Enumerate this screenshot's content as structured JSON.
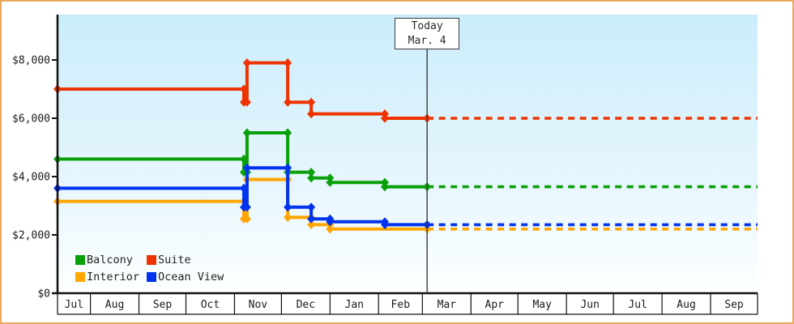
{
  "page": {
    "border_color": "#e9a85c",
    "plot_bg_top": "#cbedfb",
    "plot_bg_bottom": "#fdffff",
    "axis_color": "#111111",
    "today_line_color": "#3a3a3a"
  },
  "legend": [
    {
      "label": "Balcony",
      "color": "#0aa00a"
    },
    {
      "label": "Suite",
      "color": "#ee3300"
    },
    {
      "label": "Interior",
      "color": "#ffa500"
    },
    {
      "label": "Ocean View",
      "color": "#0033ee"
    }
  ],
  "chart_data": {
    "type": "line",
    "subtype": "step",
    "title": "",
    "x_axis": {
      "unit": "days",
      "total_days": 447,
      "month_labels": [
        "Jul",
        "Aug",
        "Sep",
        "Oct",
        "Nov",
        "Dec",
        "Jan",
        "Feb",
        "Mar",
        "Apr",
        "May",
        "Jun",
        "Jul",
        "Aug",
        "Sep"
      ],
      "month_boundaries_days": [
        0,
        21,
        52,
        82,
        113,
        143,
        174,
        205,
        233,
        264,
        294,
        325,
        355,
        386,
        417,
        447
      ]
    },
    "y_axis": {
      "min": 0,
      "max": 8000,
      "tick_interval": 2000,
      "tick_labels": [
        "$0",
        "$2,000",
        "$4,000",
        "$6,000",
        "$8,000"
      ]
    },
    "today": {
      "day": 236,
      "label_line1": "Today",
      "label_line2": "Mar. 4"
    },
    "series": [
      {
        "name": "Interior",
        "color": "#ffa500",
        "points": [
          [
            0,
            3150
          ],
          [
            119,
            3150
          ],
          [
            119,
            2550
          ],
          [
            121,
            2550
          ],
          [
            121,
            3900
          ],
          [
            147,
            3900
          ],
          [
            147,
            2600
          ],
          [
            162,
            2600
          ],
          [
            162,
            2350
          ],
          [
            174,
            2350
          ],
          [
            174,
            2200
          ],
          [
            236,
            2200
          ]
        ],
        "projected": [
          [
            236,
            2200
          ],
          [
            447,
            2200
          ]
        ]
      },
      {
        "name": "Balcony",
        "color": "#0aa00a",
        "points": [
          [
            0,
            4600
          ],
          [
            119,
            4600
          ],
          [
            119,
            4150
          ],
          [
            121,
            4150
          ],
          [
            121,
            5500
          ],
          [
            147,
            5500
          ],
          [
            147,
            4150
          ],
          [
            162,
            4150
          ],
          [
            162,
            3950
          ],
          [
            174,
            3950
          ],
          [
            174,
            3800
          ],
          [
            209,
            3800
          ],
          [
            209,
            3650
          ],
          [
            236,
            3650
          ]
        ],
        "projected": [
          [
            236,
            3650
          ],
          [
            447,
            3650
          ]
        ]
      },
      {
        "name": "Ocean View",
        "color": "#0033ee",
        "points": [
          [
            0,
            3600
          ],
          [
            119,
            3600
          ],
          [
            119,
            2950
          ],
          [
            121,
            2950
          ],
          [
            121,
            4300
          ],
          [
            147,
            4300
          ],
          [
            147,
            2950
          ],
          [
            162,
            2950
          ],
          [
            162,
            2550
          ],
          [
            174,
            2550
          ],
          [
            174,
            2450
          ],
          [
            209,
            2450
          ],
          [
            209,
            2350
          ],
          [
            236,
            2350
          ]
        ],
        "projected": [
          [
            236,
            2350
          ],
          [
            447,
            2350
          ]
        ]
      },
      {
        "name": "Suite",
        "color": "#ee3300",
        "points": [
          [
            0,
            7000
          ],
          [
            119,
            7000
          ],
          [
            119,
            6550
          ],
          [
            121,
            6550
          ],
          [
            121,
            7900
          ],
          [
            147,
            7900
          ],
          [
            147,
            6550
          ],
          [
            162,
            6550
          ],
          [
            162,
            6150
          ],
          [
            209,
            6150
          ],
          [
            209,
            6000
          ],
          [
            236,
            6000
          ]
        ],
        "projected": [
          [
            236,
            6000
          ],
          [
            447,
            6000
          ]
        ]
      }
    ]
  }
}
